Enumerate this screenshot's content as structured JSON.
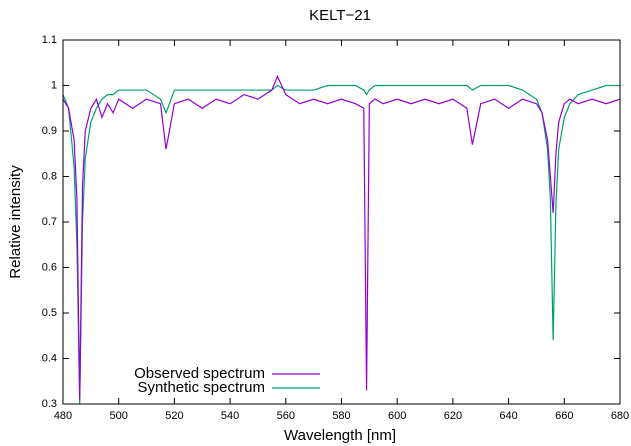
{
  "chart_data": {
    "type": "line",
    "title": "KELT−21",
    "x_label": "Wavelength [nm]",
    "y_label": "Relative intensity",
    "x": [
      480,
      482,
      484,
      485,
      486,
      487,
      488,
      490,
      492,
      494,
      496,
      498,
      500,
      505,
      510,
      515,
      517,
      520,
      525,
      530,
      535,
      540,
      545,
      550,
      555,
      557,
      560,
      565,
      570,
      575,
      580,
      585,
      588,
      589,
      590,
      592,
      595,
      600,
      605,
      610,
      615,
      620,
      625,
      627,
      630,
      635,
      640,
      645,
      650,
      652,
      654,
      655,
      656,
      657,
      658,
      660,
      662,
      665,
      670,
      675,
      680
    ],
    "series": [
      {
        "name": "Observed spectrum",
        "color": "#9400d3",
        "values": [
          0.97,
          0.95,
          0.88,
          0.75,
          0.31,
          0.78,
          0.9,
          0.95,
          0.97,
          0.93,
          0.96,
          0.94,
          0.97,
          0.95,
          0.97,
          0.96,
          0.86,
          0.96,
          0.97,
          0.95,
          0.97,
          0.96,
          0.98,
          0.97,
          0.99,
          1.02,
          0.98,
          0.96,
          0.97,
          0.96,
          0.97,
          0.96,
          0.95,
          0.33,
          0.96,
          0.97,
          0.96,
          0.97,
          0.96,
          0.97,
          0.96,
          0.97,
          0.95,
          0.87,
          0.96,
          0.97,
          0.95,
          0.97,
          0.96,
          0.94,
          0.88,
          0.8,
          0.72,
          0.85,
          0.92,
          0.96,
          0.97,
          0.96,
          0.97,
          0.96,
          0.97
        ]
      },
      {
        "name": "Synthetic spectrum",
        "color": "#009e73",
        "values": [
          0.98,
          0.95,
          0.82,
          0.65,
          0.3,
          0.7,
          0.84,
          0.92,
          0.95,
          0.97,
          0.98,
          0.98,
          0.99,
          0.99,
          0.99,
          0.97,
          0.94,
          0.99,
          0.99,
          0.99,
          0.99,
          0.99,
          0.99,
          0.99,
          0.99,
          1.0,
          0.99,
          0.99,
          0.99,
          1.0,
          1.0,
          1.0,
          0.99,
          0.98,
          0.99,
          1.0,
          1.0,
          1.0,
          1.0,
          1.0,
          1.0,
          1.0,
          1.0,
          0.99,
          1.0,
          1.0,
          1.0,
          0.99,
          0.97,
          0.94,
          0.86,
          0.75,
          0.44,
          0.74,
          0.86,
          0.93,
          0.96,
          0.98,
          0.99,
          1.0,
          1.0
        ]
      }
    ],
    "xlim": [
      480,
      680
    ],
    "xticks": [
      480,
      500,
      520,
      540,
      560,
      580,
      600,
      620,
      640,
      660,
      680
    ],
    "ylim": [
      0.3,
      1.1
    ],
    "yticks": [
      0.3,
      0.4,
      0.5,
      0.6,
      0.7,
      0.8,
      0.9,
      1,
      1.1
    ],
    "legend": "bottom-left"
  }
}
